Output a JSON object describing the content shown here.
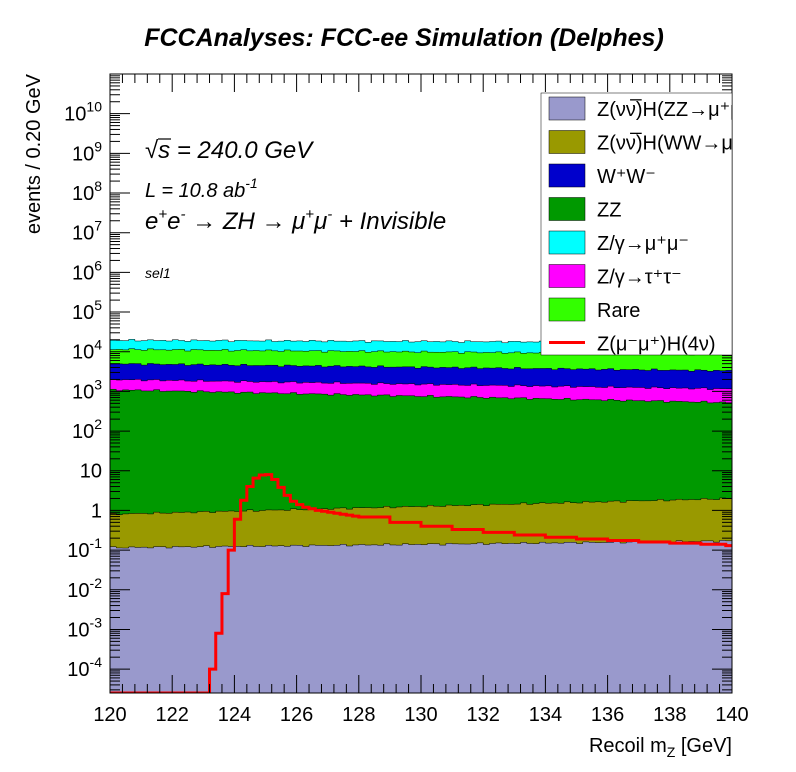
{
  "chart_data": {
    "type": "area",
    "title": "FCCAnalyses: FCC-ee Simulation (Delphes)",
    "xlabel": "Recoil m",
    "xlabel_sub": "Z",
    "xlabel_unit": " [GeV]",
    "ylabel": "events / 0.20 GeV",
    "xlim": [
      120,
      140
    ],
    "ylog": true,
    "ylim": [
      2.5e-05,
      100000000000.0
    ],
    "grid": false,
    "legend_position": "top-right",
    "annotations": {
      "sqrt_s": "240.0 GeV",
      "lumi_prefix": "L = 10.8 ab",
      "lumi_exp": "-1",
      "process": "Invisible",
      "selection": "sel1"
    },
    "x_ticks": [
      "120",
      "122",
      "124",
      "126",
      "128",
      "130",
      "132",
      "134",
      "136",
      "138",
      "140"
    ],
    "y_ticks": [
      {
        "v": 0.0001,
        "base": "10",
        "exp": "-4"
      },
      {
        "v": 0.001,
        "base": "10",
        "exp": "-3"
      },
      {
        "v": 0.01,
        "base": "10",
        "exp": "-2"
      },
      {
        "v": 0.1,
        "base": "10",
        "exp": "-1"
      },
      {
        "v": 1,
        "base": "1",
        "exp": ""
      },
      {
        "v": 10,
        "base": "10",
        "exp": ""
      },
      {
        "v": 100,
        "base": "10",
        "exp": "2"
      },
      {
        "v": 1000,
        "base": "10",
        "exp": "3"
      },
      {
        "v": 10000.0,
        "base": "10",
        "exp": "4"
      },
      {
        "v": 100000.0,
        "base": "10",
        "exp": "5"
      },
      {
        "v": 1000000.0,
        "base": "10",
        "exp": "6"
      },
      {
        "v": 10000000.0,
        "base": "10",
        "exp": "7"
      },
      {
        "v": 100000000.0,
        "base": "10",
        "exp": "8"
      },
      {
        "v": 1000000000.0,
        "base": "10",
        "exp": "9"
      },
      {
        "v": 10000000000.0,
        "base": "10",
        "exp": "10"
      }
    ],
    "stack": [
      {
        "name": "Z(νν̅)H(ZZ→μ⁺μ⁻ν⁺ν⁻)",
        "color": "#9999cc",
        "top_start": 0.115,
        "top_end": 0.17
      },
      {
        "name": "Z(νν̅)H(WW→μ⁺νμ⁻ν)",
        "color": "#999900",
        "top_start": 0.8,
        "top_end": 2.0
      },
      {
        "name": "ZZ",
        "color": "#009900",
        "top_start": 1100,
        "top_end": 520
      },
      {
        "name": "Z/γ→τ⁺τ⁻",
        "color": "#ff00ff",
        "top_start": 2000,
        "top_end": 1150
      },
      {
        "name": "W⁺W⁻",
        "color": "#0000cc",
        "top_start": 5000,
        "top_end": 3300
      },
      {
        "name": "Rare",
        "color": "#33ff00",
        "top_start": 11500,
        "top_end": 8500
      },
      {
        "name": "Z/γ→μ⁺μ⁻",
        "color": "#00ffff",
        "top_start": 19500,
        "top_end": 17000
      }
    ],
    "signal": {
      "name": "Z(μ⁻μ⁺)H(4ν)",
      "color": "#ff0000",
      "x": [
        123.2,
        123.4,
        123.6,
        123.8,
        124.0,
        124.2,
        124.4,
        124.6,
        124.8,
        125.0,
        125.2,
        125.4,
        125.6,
        125.8,
        126.0,
        126.2,
        126.4,
        126.6,
        126.8,
        127.0,
        127.2,
        127.4,
        127.6,
        127.8,
        128.0,
        129.0,
        130.0,
        131.0,
        132.0,
        133.0,
        134.0,
        135.0,
        136.0,
        137.0,
        138.0,
        139.0,
        139.8
      ],
      "values": [
        0.0001,
        0.0008,
        0.008,
        0.1,
        0.6,
        1.8,
        4.0,
        6.5,
        7.8,
        8.0,
        6.0,
        3.8,
        2.4,
        1.7,
        1.4,
        1.2,
        1.1,
        1.0,
        0.95,
        0.9,
        0.85,
        0.8,
        0.76,
        0.72,
        0.68,
        0.5,
        0.4,
        0.33,
        0.28,
        0.24,
        0.21,
        0.19,
        0.175,
        0.16,
        0.15,
        0.14,
        0.13
      ]
    },
    "legend": [
      {
        "label": "Z(νν̅)H(ZZ→μ⁺μ⁻ν⁺ν⁻)",
        "color": "#9999cc",
        "kind": "box"
      },
      {
        "label": "Z(νν̅)H(WW→μ⁺νμ⁻ν)",
        "color": "#999900",
        "kind": "box"
      },
      {
        "label": "W⁺W⁻",
        "color": "#0000cc",
        "kind": "box"
      },
      {
        "label": "ZZ",
        "color": "#009900",
        "kind": "box"
      },
      {
        "label": "Z/γ→μ⁺μ⁻",
        "color": "#00ffff",
        "kind": "box"
      },
      {
        "label": "Z/γ→τ⁺τ⁻",
        "color": "#ff00ff",
        "kind": "box"
      },
      {
        "label": "Rare",
        "color": "#33ff00",
        "kind": "box"
      },
      {
        "label": "Z(μ⁻μ⁺)H(4ν)",
        "color": "#ff0000",
        "kind": "line"
      }
    ]
  }
}
